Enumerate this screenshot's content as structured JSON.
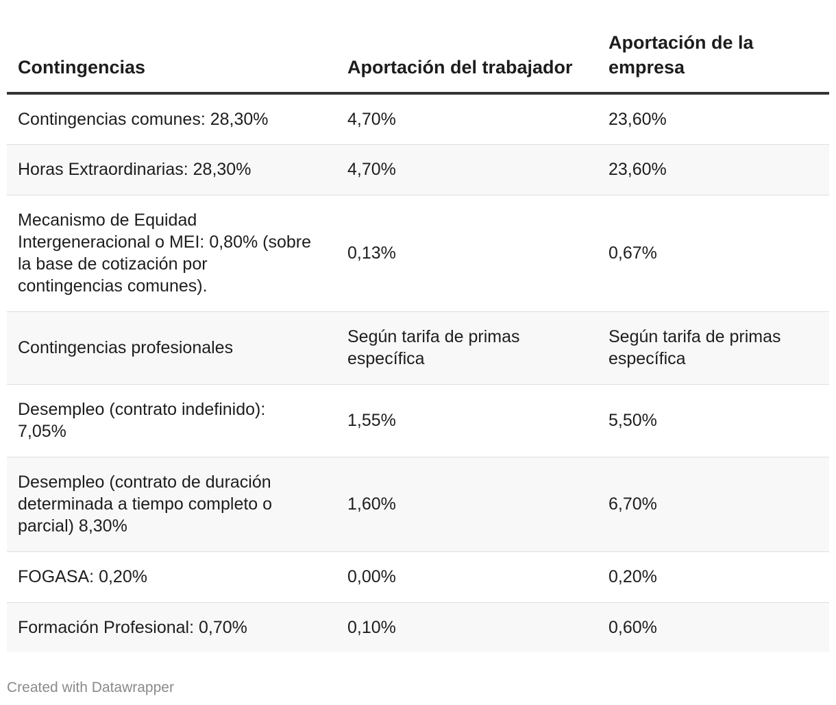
{
  "chart_data": {
    "type": "table",
    "columns": [
      "Contingencias",
      "Aportación del trabajador",
      "Aportación de la empresa"
    ],
    "rows": [
      [
        "Contingencias comunes: 28,30%",
        "4,70%",
        "23,60%"
      ],
      [
        "Horas Extraordinarias: 28,30%",
        "4,70%",
        "23,60%"
      ],
      [
        "Mecanismo de Equidad Intergeneracional o MEI: 0,80% (sobre la base de cotización por contingencias comunes).",
        "0,13%",
        "0,67%"
      ],
      [
        "Contingencias profesionales",
        "Según tarifa de primas específica",
        "Según tarifa de primas específica"
      ],
      [
        "Desempleo (contrato indefinido): 7,05%",
        "1,55%",
        "5,50%"
      ],
      [
        "Desempleo (contrato de duración determinada a tiempo completo o parcial) 8,30%",
        "1,60%",
        "6,70%"
      ],
      [
        "FOGASA: 0,20%",
        "0,00%",
        "0,20%"
      ],
      [
        "Formación Profesional: 0,70%",
        "0,10%",
        "0,60%"
      ]
    ],
    "header_rule_color": "#333333",
    "stripe_color": "#f8f8f8"
  },
  "footer": {
    "credit": "Created with Datawrapper"
  }
}
